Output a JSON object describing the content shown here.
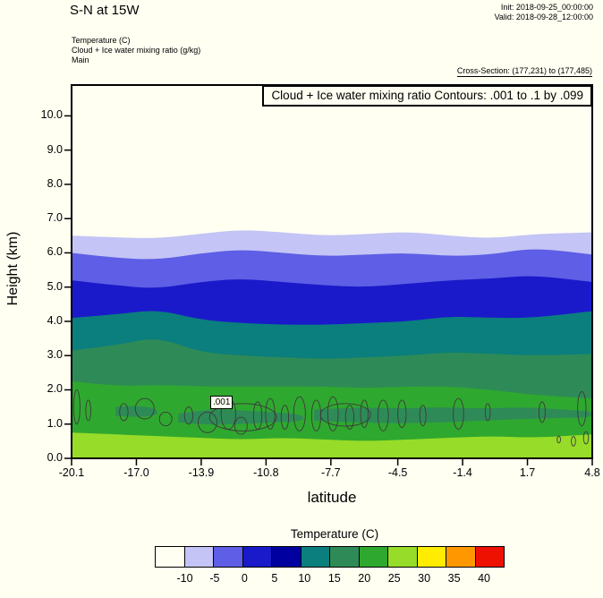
{
  "header": {
    "title": "S-N at 15W",
    "init_line": "Init: 2018-09-25_00:00:00",
    "valid_line": "Valid: 2018-09-28_12:00:00",
    "field_lines": [
      "Temperature   (C)",
      "Cloud + Ice water mixing ratio   (g/kg)",
      "Main"
    ],
    "cross_section_line": "Cross-Section: (177,231) to (177,485)"
  },
  "plot": {
    "box_title": "Cloud + Ice water mixing ratio Contours: .001 to .1 by .099",
    "xlabel": "latitude",
    "ylabel": "Height (km)"
  },
  "chart_data": {
    "type": "heatmap",
    "variant": "filled_contour_vertical_cross_section",
    "filled_field": "Temperature (C)",
    "line_field": "Cloud + Ice water mixing ratio (g/kg)",
    "contour_spec": "Contours: .001 to .1 by .099",
    "x_axis": {
      "label": "latitude",
      "ticks": [
        "-20.1",
        "-17.0",
        "-13.9",
        "-10.8",
        "-7.7",
        "-4.5",
        "-1.4",
        "1.7",
        "4.8"
      ],
      "range": [
        -20.1,
        4.8
      ]
    },
    "y_axis": {
      "label": "Height (km)",
      "ticks": [
        "0.0",
        "1.0",
        "2.0",
        "3.0",
        "4.0",
        "5.0",
        "6.0",
        "7.0",
        "8.0",
        "9.0",
        "10.0"
      ],
      "range": [
        0,
        10.9
      ]
    },
    "sample_lats": [
      -20.1,
      -18,
      -16,
      -14,
      -12,
      -10,
      -8,
      -6,
      -4,
      -2,
      0,
      2,
      4.8
    ],
    "bands": [
      {
        "temp_range_c": "below -10",
        "color": "#FFFFF2"
      },
      {
        "temp_range_c": "-10 to -5",
        "color": "#C4C4F6",
        "top_km": [
          6.5,
          6.45,
          6.42,
          6.55,
          6.68,
          6.6,
          6.5,
          6.55,
          6.62,
          6.5,
          6.42,
          6.55,
          6.6
        ]
      },
      {
        "temp_range_c": "-5 to 0",
        "color": "#5E5EE6",
        "top_km": [
          6.0,
          5.85,
          5.8,
          5.98,
          6.1,
          6.0,
          5.9,
          5.95,
          6.0,
          5.9,
          5.95,
          6.15,
          5.95
        ]
      },
      {
        "temp_range_c": "0 to 5",
        "color": "#1A1ACA",
        "top_km": [
          5.2,
          5.05,
          4.95,
          5.15,
          5.25,
          5.15,
          5.05,
          5.0,
          5.1,
          5.2,
          5.25,
          5.35,
          5.15
        ]
      },
      {
        "temp_range_c": "5 to 15",
        "color": "#0B7E7E",
        "top_km": [
          4.1,
          4.2,
          4.35,
          4.05,
          3.95,
          3.9,
          3.9,
          3.95,
          4.0,
          4.15,
          4.1,
          4.1,
          4.3
        ]
      },
      {
        "temp_range_c": "15 to 20",
        "color": "#2E8B57",
        "top_km": [
          3.15,
          3.3,
          3.55,
          3.1,
          3.0,
          2.95,
          2.9,
          2.95,
          3.0,
          3.1,
          3.05,
          3.0,
          3.05
        ]
      },
      {
        "temp_range_c": "20 to 25",
        "color": "#2FA82F",
        "top_km": [
          2.25,
          2.1,
          2.15,
          2.1,
          2.1,
          2.1,
          2.1,
          2.05,
          2.1,
          2.1,
          2.0,
          1.85,
          1.75
        ]
      },
      {
        "temp_range_c": "25 to 30",
        "color": "#97DC28",
        "top_km": [
          0.75,
          0.7,
          0.65,
          0.6,
          0.55,
          0.6,
          0.55,
          0.5,
          0.55,
          0.6,
          0.65,
          0.6,
          0.7
        ]
      }
    ],
    "inversion_patches": [
      {
        "color": "#2E8B57",
        "lats": [
          -18,
          -17,
          -16
        ],
        "top_km": [
          1.5,
          1.55,
          1.45
        ],
        "bottom_km": [
          1.25,
          1.2,
          1.25
        ]
      },
      {
        "color": "#2E8B57",
        "lats": [
          -15,
          -13.5,
          -12,
          -10.5,
          -9
        ],
        "top_km": [
          1.3,
          1.45,
          1.4,
          1.35,
          1.28
        ],
        "bottom_km": [
          1.05,
          0.98,
          1.0,
          1.05,
          1.08
        ]
      },
      {
        "color": "#2E8B57",
        "lats": [
          -8.5,
          -6.5,
          -4.5,
          -2.5,
          -0.5,
          1.5,
          3.5,
          4.8
        ],
        "top_km": [
          1.42,
          1.5,
          1.45,
          1.5,
          1.45,
          1.5,
          1.42,
          1.38
        ],
        "bottom_km": [
          1.1,
          1.05,
          1.02,
          1.05,
          1.1,
          1.15,
          1.18,
          1.2
        ]
      }
    ],
    "cloud_contours": {
      "value": 0.001,
      "value_label": ".001",
      "label_lat": -12.7,
      "label_km": 1.62,
      "stroke": "#3a3a3a",
      "loops": [
        [
          -19.85,
          1.5,
          0.15,
          0.5
        ],
        [
          -19.3,
          1.4,
          0.12,
          0.3
        ],
        [
          -17.6,
          1.35,
          0.2,
          0.25
        ],
        [
          -16.6,
          1.45,
          0.45,
          0.3
        ],
        [
          -15.6,
          1.15,
          0.3,
          0.2
        ],
        [
          -14.5,
          1.25,
          0.2,
          0.25
        ],
        [
          -13.6,
          1.05,
          0.45,
          0.3
        ],
        [
          -12.6,
          1.3,
          0.35,
          0.45
        ],
        [
          -12.0,
          0.95,
          0.3,
          0.25
        ],
        [
          -11.2,
          1.25,
          0.2,
          0.4
        ],
        [
          -10.6,
          1.3,
          0.22,
          0.45
        ],
        [
          -9.9,
          1.2,
          0.18,
          0.35
        ],
        [
          -9.2,
          1.3,
          0.28,
          0.5
        ],
        [
          -8.4,
          1.25,
          0.22,
          0.45
        ],
        [
          -7.6,
          1.3,
          0.25,
          0.5
        ],
        [
          -6.8,
          1.2,
          0.2,
          0.35
        ],
        [
          -6.1,
          1.3,
          0.18,
          0.4
        ],
        [
          -5.2,
          1.25,
          0.25,
          0.45
        ],
        [
          -4.3,
          1.3,
          0.2,
          0.4
        ],
        [
          -3.3,
          1.25,
          0.15,
          0.3
        ],
        [
          -1.6,
          1.3,
          0.25,
          0.45
        ],
        [
          -0.2,
          1.35,
          0.12,
          0.25
        ],
        [
          2.4,
          1.35,
          0.15,
          0.3
        ],
        [
          4.3,
          1.45,
          0.2,
          0.5
        ],
        [
          4.5,
          0.6,
          0.12,
          0.18
        ],
        [
          3.9,
          0.5,
          0.1,
          0.14
        ],
        [
          3.2,
          0.55,
          0.08,
          0.1
        ],
        [
          -11.9,
          1.2,
          1.6,
          0.4
        ],
        [
          -7.0,
          1.27,
          1.2,
          0.33
        ]
      ]
    }
  },
  "colorbar": {
    "title": "Temperature  (C)",
    "boundary_labels": [
      "-10",
      "-5",
      "0",
      "5",
      "10",
      "15",
      "20",
      "25",
      "30",
      "35",
      "40"
    ],
    "cell_colors": [
      "#FFFFF2",
      "#C4C4F6",
      "#5E5EE6",
      "#1A1ACA",
      "#0000A0",
      "#0B7E7E",
      "#2E8B57",
      "#2FA82F",
      "#97DC28",
      "#FFEC00",
      "#FF9800",
      "#EE1000"
    ]
  }
}
